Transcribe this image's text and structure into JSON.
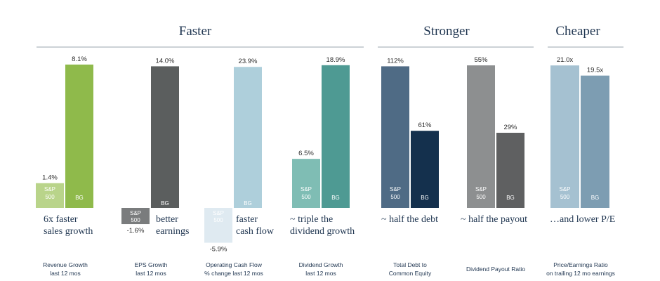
{
  "colors": {
    "rev_sp": "#b9d48a",
    "rev_bg": "#8fba4b",
    "eps_sp": "#7a7c7d",
    "eps_bg": "#5b5e5e",
    "ocf_sp": "#dfeaf1",
    "ocf_bg": "#aecfdb",
    "div_sp": "#7fbdb4",
    "div_bg": "#4e9a93",
    "debt_sp": "#4f6b85",
    "debt_bg": "#14304d",
    "pay_sp": "#8d8f90",
    "pay_bg": "#5f6061",
    "pe_sp": "#a5c1d1",
    "pe_bg": "#7d9db2"
  },
  "chart_data": {
    "type": "bar",
    "sections": [
      {
        "title": "Faster"
      },
      {
        "title": "Stronger"
      },
      {
        "title": "Cheaper"
      }
    ],
    "groups": [
      {
        "section": 0,
        "caption": [
          "Revenue Growth",
          "last 12 mos"
        ],
        "annotation": [
          "6x faster",
          "sales growth"
        ],
        "bars": [
          {
            "series": "S&P 500",
            "name_lines": [
              "S&P",
              "500"
            ],
            "value": 1.4,
            "label": "1.4%"
          },
          {
            "series": "BG",
            "name_lines": [
              "BG"
            ],
            "value": 8.1,
            "label": "8.1%"
          }
        ]
      },
      {
        "section": 0,
        "caption": [
          "EPS Growth",
          "last 12 mos"
        ],
        "annotation": [
          "better",
          "earnings"
        ],
        "bars": [
          {
            "series": "S&P 500",
            "name_lines": [
              "S&P",
              "500"
            ],
            "value": -1.6,
            "label": "-1.6%"
          },
          {
            "series": "BG",
            "name_lines": [
              "BG"
            ],
            "value": 14.0,
            "label": "14.0%"
          }
        ]
      },
      {
        "section": 0,
        "caption": [
          "Operating Cash Flow",
          "% change last 12 mos"
        ],
        "annotation": [
          "faster",
          "cash flow"
        ],
        "bars": [
          {
            "series": "S&P 500",
            "name_lines": [
              "S&P",
              "500"
            ],
            "value": -5.9,
            "label": "-5.9%"
          },
          {
            "series": "BG",
            "name_lines": [
              "BG"
            ],
            "value": 23.9,
            "label": "23.9%"
          }
        ]
      },
      {
        "section": 0,
        "caption": [
          "Dividend Growth",
          "last 12 mos"
        ],
        "annotation": [
          "~ triple the",
          "dividend growth"
        ],
        "bars": [
          {
            "series": "S&P 500",
            "name_lines": [
              "S&P",
              "500"
            ],
            "value": 6.5,
            "label": "6.5%"
          },
          {
            "series": "BG",
            "name_lines": [
              "BG"
            ],
            "value": 18.9,
            "label": "18.9%"
          }
        ]
      },
      {
        "section": 1,
        "caption": [
          "Total Debt to",
          "Common Equity"
        ],
        "annotation": [
          "~ half the debt"
        ],
        "bars": [
          {
            "series": "S&P 500",
            "name_lines": [
              "S&P",
              "500"
            ],
            "value": 112,
            "label": "112%"
          },
          {
            "series": "BG",
            "name_lines": [
              "BG"
            ],
            "value": 61,
            "label": "61%"
          }
        ]
      },
      {
        "section": 1,
        "caption": [
          "Dividend  Payout Ratio"
        ],
        "annotation": [
          "~ half the payout"
        ],
        "bars": [
          {
            "series": "S&P 500",
            "name_lines": [
              "S&P",
              "500"
            ],
            "value": 55,
            "label": "55%"
          },
          {
            "series": "BG",
            "name_lines": [
              "BG"
            ],
            "value": 29,
            "label": "29%"
          }
        ]
      },
      {
        "section": 2,
        "caption": [
          "Price/Earnings Ratio",
          "on trailing 12 mo earnings"
        ],
        "annotation": [
          "…and lower P/E"
        ],
        "bars": [
          {
            "series": "S&P 500",
            "name_lines": [
              "S&P",
              "500"
            ],
            "value": 21.0,
            "label": "21.0x"
          },
          {
            "series": "BG",
            "name_lines": [
              "BG"
            ],
            "value": 19.5,
            "label": "19.5x"
          }
        ]
      }
    ]
  }
}
